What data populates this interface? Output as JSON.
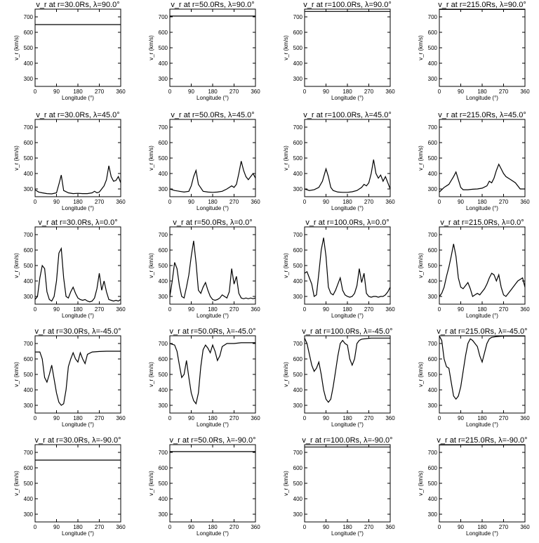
{
  "common": {
    "xlabel": "Longitude (°)",
    "ylabel": "v_r (km/s)",
    "xlim": [
      0,
      360
    ],
    "ylim": [
      250,
      750
    ],
    "xticks": [
      0,
      90,
      180,
      270,
      360
    ],
    "yticks": [
      300,
      400,
      500,
      600,
      700
    ]
  },
  "chart_data": [
    {
      "type": "line",
      "title": "v_r at r=30.0Rs,  λ=90.0°",
      "x": [
        0,
        360
      ],
      "y": [
        650,
        650
      ]
    },
    {
      "type": "line",
      "title": "v_r at r=50.0Rs,  λ=90.0°",
      "x": [
        0,
        360
      ],
      "y": [
        705,
        705
      ]
    },
    {
      "type": "line",
      "title": "v_r at r=100.0Rs,  λ=90.0°",
      "x": [
        0,
        360
      ],
      "y": [
        735,
        735
      ]
    },
    {
      "type": "line",
      "title": "v_r at r=215.0Rs,  λ=90.0°",
      "x": [
        0,
        360
      ],
      "y": [
        748,
        748
      ]
    },
    {
      "type": "line",
      "title": "v_r at r=30.0Rs,  λ=45.0°",
      "x": [
        0,
        15,
        30,
        50,
        70,
        90,
        100,
        110,
        120,
        140,
        160,
        180,
        200,
        220,
        240,
        250,
        260,
        270,
        280,
        290,
        300,
        310,
        320,
        330,
        340,
        350,
        360
      ],
      "y": [
        295,
        280,
        275,
        270,
        268,
        275,
        330,
        390,
        290,
        275,
        270,
        272,
        270,
        270,
        275,
        285,
        275,
        280,
        300,
        320,
        360,
        450,
        380,
        350,
        355,
        380,
        340
      ]
    },
    {
      "type": "line",
      "title": "v_r at r=50.0Rs,  λ=45.0°",
      "x": [
        0,
        20,
        40,
        60,
        80,
        90,
        100,
        110,
        120,
        140,
        160,
        180,
        200,
        220,
        240,
        260,
        270,
        280,
        290,
        300,
        310,
        320,
        330,
        340,
        350,
        360
      ],
      "y": [
        300,
        290,
        285,
        280,
        285,
        320,
        380,
        420,
        330,
        285,
        280,
        278,
        280,
        285,
        300,
        320,
        310,
        330,
        400,
        480,
        420,
        380,
        360,
        380,
        400,
        370
      ]
    },
    {
      "type": "line",
      "title": "v_r at r=100.0Rs,  λ=45.0°",
      "x": [
        0,
        20,
        40,
        60,
        75,
        90,
        100,
        110,
        120,
        140,
        160,
        180,
        200,
        220,
        240,
        250,
        260,
        270,
        280,
        290,
        300,
        310,
        320,
        330,
        340,
        350,
        360
      ],
      "y": [
        300,
        290,
        295,
        310,
        350,
        430,
        380,
        310,
        290,
        280,
        278,
        278,
        282,
        290,
        310,
        330,
        320,
        340,
        400,
        490,
        400,
        370,
        390,
        350,
        380,
        340,
        300
      ]
    },
    {
      "type": "line",
      "title": "v_r at r=215.0Rs,  λ=45.0°",
      "x": [
        0,
        20,
        40,
        60,
        70,
        80,
        90,
        100,
        120,
        140,
        160,
        180,
        200,
        210,
        220,
        230,
        240,
        250,
        260,
        270,
        280,
        300,
        320,
        340,
        360
      ],
      "y": [
        280,
        310,
        330,
        380,
        410,
        360,
        310,
        295,
        295,
        298,
        300,
        305,
        320,
        350,
        340,
        370,
        420,
        460,
        430,
        400,
        380,
        360,
        340,
        300,
        300
      ]
    },
    {
      "type": "line",
      "title": "v_r at r=30.0Rs,  λ=0.0°",
      "x": [
        0,
        10,
        20,
        30,
        40,
        50,
        60,
        70,
        80,
        90,
        100,
        110,
        120,
        130,
        140,
        150,
        160,
        170,
        180,
        190,
        200,
        210,
        220,
        230,
        240,
        250,
        260,
        270,
        280,
        290,
        300,
        310,
        320,
        330,
        340,
        350,
        360
      ],
      "y": [
        280,
        300,
        420,
        500,
        480,
        330,
        280,
        270,
        300,
        400,
        580,
        610,
        420,
        300,
        290,
        330,
        360,
        320,
        290,
        280,
        275,
        280,
        270,
        265,
        270,
        290,
        350,
        450,
        340,
        400,
        330,
        280,
        275,
        270,
        275,
        270,
        280
      ]
    },
    {
      "type": "line",
      "title": "v_r at r=50.0Rs,  λ=0.0°",
      "x": [
        0,
        10,
        20,
        30,
        40,
        50,
        60,
        70,
        80,
        90,
        100,
        110,
        120,
        130,
        140,
        150,
        160,
        170,
        180,
        190,
        200,
        210,
        220,
        230,
        240,
        250,
        260,
        270,
        280,
        290,
        300,
        310,
        320,
        330,
        340,
        350,
        360
      ],
      "y": [
        300,
        400,
        520,
        480,
        370,
        300,
        290,
        360,
        440,
        560,
        660,
        520,
        340,
        320,
        360,
        390,
        340,
        300,
        280,
        275,
        280,
        290,
        310,
        300,
        290,
        330,
        480,
        380,
        430,
        320,
        290,
        285,
        290,
        285,
        290,
        285,
        290
      ]
    },
    {
      "type": "line",
      "title": "v_r at r=100.0Rs,  λ=0.0°",
      "x": [
        0,
        10,
        20,
        30,
        40,
        50,
        60,
        70,
        80,
        90,
        100,
        110,
        120,
        130,
        140,
        150,
        160,
        170,
        180,
        190,
        200,
        210,
        220,
        230,
        240,
        250,
        260,
        270,
        280,
        290,
        300,
        310,
        320,
        330,
        340,
        350,
        360
      ],
      "y": [
        450,
        460,
        420,
        380,
        300,
        310,
        450,
        600,
        680,
        560,
        360,
        320,
        310,
        340,
        380,
        420,
        340,
        310,
        300,
        295,
        300,
        320,
        370,
        480,
        390,
        450,
        320,
        300,
        295,
        300,
        300,
        295,
        300,
        300,
        310,
        330,
        360
      ]
    },
    {
      "type": "line",
      "title": "v_r at r=215.0Rs,  λ=0.0°",
      "x": [
        0,
        10,
        20,
        30,
        40,
        50,
        60,
        70,
        80,
        90,
        100,
        110,
        120,
        130,
        140,
        150,
        160,
        170,
        180,
        190,
        200,
        210,
        220,
        230,
        240,
        250,
        260,
        270,
        280,
        290,
        300,
        310,
        320,
        330,
        340,
        350,
        360
      ],
      "y": [
        300,
        320,
        360,
        430,
        490,
        560,
        640,
        560,
        420,
        360,
        350,
        370,
        390,
        350,
        300,
        310,
        320,
        310,
        330,
        350,
        380,
        420,
        450,
        440,
        400,
        440,
        360,
        310,
        300,
        320,
        340,
        360,
        380,
        400,
        410,
        420,
        360
      ]
    },
    {
      "type": "line",
      "title": "v_r at r=30.0Rs,  λ=-45.0°",
      "x": [
        0,
        20,
        30,
        40,
        50,
        60,
        70,
        80,
        90,
        100,
        110,
        120,
        130,
        140,
        150,
        160,
        170,
        180,
        190,
        200,
        210,
        220,
        240,
        270,
        300,
        330,
        360
      ],
      "y": [
        645,
        645,
        600,
        480,
        450,
        500,
        560,
        470,
        380,
        320,
        300,
        310,
        400,
        550,
        600,
        640,
        600,
        580,
        640,
        600,
        570,
        630,
        645,
        648,
        650,
        650,
        650
      ]
    },
    {
      "type": "line",
      "title": "v_r at r=50.0Rs,  λ=-45.0°",
      "x": [
        0,
        20,
        30,
        40,
        50,
        60,
        70,
        80,
        90,
        100,
        110,
        120,
        130,
        140,
        150,
        160,
        170,
        180,
        190,
        200,
        210,
        220,
        240,
        270,
        300,
        330,
        360
      ],
      "y": [
        700,
        690,
        650,
        560,
        480,
        500,
        590,
        480,
        380,
        330,
        310,
        380,
        550,
        660,
        690,
        670,
        640,
        690,
        650,
        590,
        620,
        680,
        700,
        700,
        705,
        705,
        705
      ]
    },
    {
      "type": "line",
      "title": "v_r at r=100.0Rs,  λ=-45.0°",
      "x": [
        0,
        10,
        20,
        30,
        40,
        50,
        60,
        70,
        80,
        90,
        100,
        110,
        120,
        130,
        140,
        150,
        160,
        170,
        180,
        190,
        200,
        210,
        220,
        230,
        240,
        260,
        280,
        300,
        330,
        360
      ],
      "y": [
        735,
        700,
        630,
        560,
        520,
        540,
        580,
        500,
        400,
        340,
        320,
        340,
        420,
        520,
        620,
        700,
        720,
        700,
        690,
        600,
        560,
        600,
        700,
        720,
        728,
        732,
        735,
        735,
        735,
        735
      ]
    },
    {
      "type": "line",
      "title": "v_r at r=215.0Rs,  λ=-45.0°",
      "x": [
        0,
        10,
        20,
        30,
        40,
        50,
        60,
        70,
        80,
        90,
        100,
        110,
        120,
        130,
        140,
        150,
        160,
        170,
        180,
        190,
        200,
        210,
        220,
        240,
        270,
        300,
        330,
        360
      ],
      "y": [
        748,
        720,
        600,
        550,
        540,
        450,
        360,
        340,
        360,
        420,
        520,
        620,
        700,
        730,
        720,
        700,
        680,
        620,
        580,
        640,
        700,
        730,
        740,
        745,
        748,
        748,
        748,
        748
      ]
    },
    {
      "type": "line",
      "title": "v_r at r=30.0Rs,  λ=-90.0°",
      "x": [
        0,
        360
      ],
      "y": [
        650,
        650
      ]
    },
    {
      "type": "line",
      "title": "v_r at r=50.0Rs,  λ=-90.0°",
      "x": [
        0,
        360
      ],
      "y": [
        705,
        705
      ]
    },
    {
      "type": "line",
      "title": "v_r at r=100.0Rs,  λ=-90.0°",
      "x": [
        0,
        360
      ],
      "y": [
        735,
        735
      ]
    },
    {
      "type": "line",
      "title": "v_r at r=215.0Rs,  λ=-90.0°",
      "x": [
        0,
        360
      ],
      "y": [
        748,
        748
      ]
    }
  ]
}
